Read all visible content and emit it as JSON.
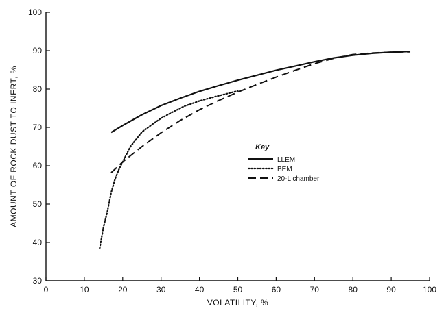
{
  "chart_data": {
    "type": "line",
    "xlabel": "VOLATILITY, %",
    "ylabel": "AMOUNT OF ROCK DUST TO INERT, %",
    "xlim": [
      0,
      100
    ],
    "ylim": [
      30,
      100
    ],
    "xticks": [
      0,
      10,
      20,
      30,
      40,
      50,
      60,
      70,
      80,
      90,
      100
    ],
    "yticks": [
      30,
      40,
      50,
      60,
      70,
      80,
      90,
      100
    ],
    "grid": false,
    "legend": {
      "title": "Key",
      "position": "center-right"
    },
    "series": [
      {
        "name": "LLEM",
        "style": "solid",
        "x": [
          17,
          20,
          25,
          30,
          35,
          40,
          45,
          50,
          55,
          60,
          65,
          70,
          75,
          80,
          85,
          90,
          95
        ],
        "y": [
          68.7,
          70.5,
          73.3,
          75.7,
          77.6,
          79.4,
          80.9,
          82.3,
          83.6,
          84.9,
          86.0,
          87.1,
          88.1,
          88.8,
          89.3,
          89.6,
          89.8
        ]
      },
      {
        "name": "BEM",
        "style": "dotted",
        "x": [
          14,
          15,
          16,
          17,
          18,
          19,
          20,
          22,
          25,
          28,
          30,
          33,
          36,
          40,
          44,
          48,
          50
        ],
        "y": [
          38.5,
          44.0,
          48.0,
          53.0,
          56.5,
          59.0,
          61.0,
          65.0,
          68.8,
          71.0,
          72.4,
          74.0,
          75.5,
          76.9,
          78.0,
          79.0,
          79.5
        ]
      },
      {
        "name": "20-L chamber",
        "style": "dashed",
        "x": [
          17,
          20,
          25,
          30,
          35,
          40,
          45,
          50,
          55,
          60,
          65,
          70,
          75,
          80,
          85,
          90,
          95
        ],
        "y": [
          58.2,
          61.0,
          65.0,
          68.6,
          71.8,
          74.6,
          77.0,
          79.2,
          81.2,
          83.1,
          84.9,
          86.6,
          88.0,
          89.0,
          89.4,
          89.6,
          89.7
        ]
      }
    ]
  }
}
